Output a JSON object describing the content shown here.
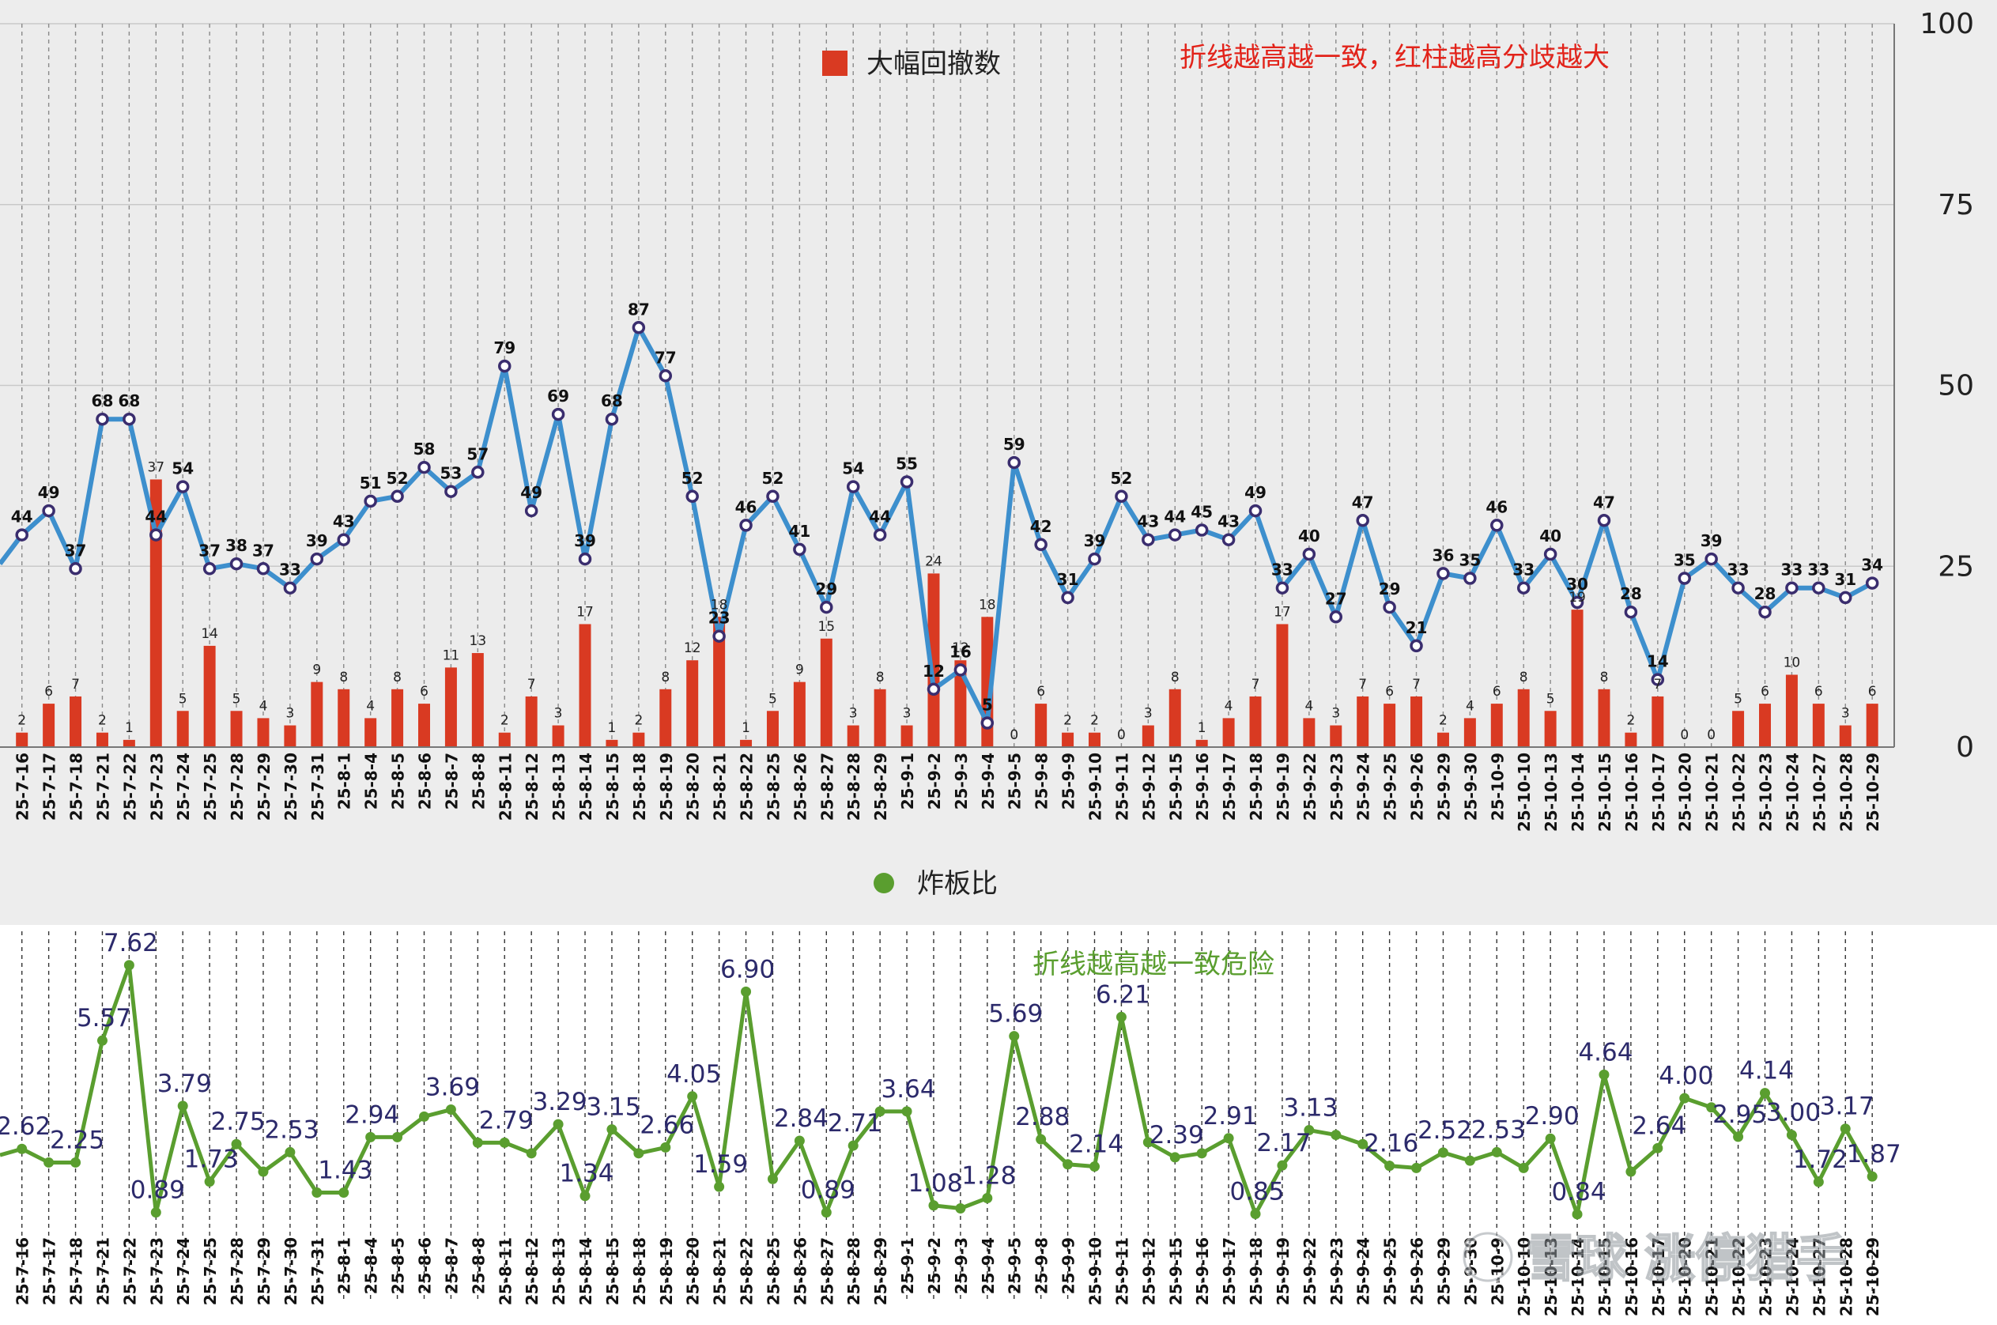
{
  "chart_data": [
    {
      "type": "bar+line",
      "annotation": "折线越高越一致，红柱越高分歧越大",
      "legend": [
        {
          "name": "大幅回撤数",
          "color": "#d93a22",
          "shape": "square"
        }
      ],
      "right_axis_ticks": [
        "100",
        "75",
        "50",
        "25",
        "0"
      ],
      "ylim": [
        0,
        100
      ],
      "grid": true,
      "colors": {
        "bar": "#d93a22",
        "line": "#3d8fcd",
        "marker_fill": "#ffffff",
        "marker_stroke": "#3a2d6e",
        "panel_bg": "#ededed"
      },
      "categories": [
        "25-7-16",
        "25-7-17",
        "25-7-18",
        "25-7-21",
        "25-7-22",
        "25-7-23",
        "25-7-24",
        "25-7-25",
        "25-7-28",
        "25-7-29",
        "25-7-30",
        "25-7-31",
        "25-8-1",
        "25-8-4",
        "25-8-5",
        "25-8-6",
        "25-8-7",
        "25-8-8",
        "25-8-11",
        "25-8-12",
        "25-8-13",
        "25-8-14",
        "25-8-15",
        "25-8-18",
        "25-8-19",
        "25-8-20",
        "25-8-21",
        "25-8-22",
        "25-8-25",
        "25-8-26",
        "25-8-27",
        "25-8-28",
        "25-8-29",
        "25-9-1",
        "25-9-2",
        "25-9-3",
        "25-9-4",
        "25-9-5",
        "25-9-8",
        "25-9-9",
        "25-9-10",
        "25-9-11",
        "25-9-12",
        "25-9-15",
        "25-9-16",
        "25-9-17",
        "25-9-18",
        "25-9-19",
        "25-9-22",
        "25-9-23",
        "25-9-24",
        "25-9-25",
        "25-9-26",
        "25-9-29",
        "25-9-30",
        "25-10-9",
        "25-10-10",
        "25-10-13",
        "25-10-14",
        "25-10-15",
        "25-10-16",
        "25-10-17",
        "25-10-20",
        "25-10-21",
        "25-10-22",
        "25-10-23",
        "25-10-24",
        "25-10-27",
        "25-10-28",
        "25-10-29"
      ],
      "bar_values": [
        2,
        6,
        7,
        2,
        1,
        37,
        5,
        14,
        5,
        4,
        3,
        9,
        8,
        4,
        8,
        6,
        11,
        13,
        2,
        7,
        3,
        17,
        1,
        2,
        8,
        12,
        18,
        1,
        5,
        9,
        15,
        3,
        8,
        3,
        24,
        12,
        18,
        0,
        6,
        2,
        2,
        0,
        3,
        8,
        1,
        4,
        7,
        17,
        4,
        3,
        7,
        6,
        7,
        2,
        4,
        6,
        8,
        5,
        19,
        8,
        2,
        7,
        0,
        0,
        5,
        6,
        10,
        6,
        3,
        6
      ],
      "line_values": [
        44,
        49,
        37,
        68,
        68,
        44,
        54,
        37,
        38,
        37,
        33,
        39,
        43,
        51,
        52,
        58,
        53,
        57,
        79,
        49,
        69,
        39,
        68,
        87,
        77,
        52,
        23,
        46,
        52,
        41,
        29,
        54,
        44,
        55,
        12,
        16,
        5,
        59,
        42,
        31,
        39,
        52,
        43,
        44,
        45,
        43,
        49,
        33,
        40,
        27,
        47,
        29,
        21,
        36,
        35,
        46,
        33,
        40,
        30,
        47,
        28,
        14,
        35,
        39,
        33,
        28,
        33,
        33,
        31,
        34
      ],
      "line_scale_max": 150,
      "left_partial": {
        "line_value": 38,
        "line_label": ""
      }
    },
    {
      "type": "line",
      "annotation": "折线越高越一致危险",
      "legend": [
        {
          "name": "炸板比",
          "color": "#5a9e2f",
          "shape": "circle"
        }
      ],
      "grid": true,
      "colors": {
        "line": "#5a9e2f",
        "label": "#2c2a6b"
      },
      "categories": [
        "25-7-16",
        "25-7-17",
        "25-7-18",
        "25-7-21",
        "25-7-22",
        "25-7-23",
        "25-7-24",
        "25-7-25",
        "25-7-28",
        "25-7-29",
        "25-7-30",
        "25-7-31",
        "25-8-1",
        "25-8-4",
        "25-8-5",
        "25-8-6",
        "25-8-7",
        "25-8-8",
        "25-8-11",
        "25-8-12",
        "25-8-13",
        "25-8-14",
        "25-8-15",
        "25-8-18",
        "25-8-19",
        "25-8-20",
        "25-8-21",
        "25-8-22",
        "25-8-25",
        "25-8-26",
        "25-8-27",
        "25-8-28",
        "25-8-29",
        "25-9-1",
        "25-9-2",
        "25-9-3",
        "25-9-4",
        "25-9-5",
        "25-9-8",
        "25-9-9",
        "25-9-10",
        "25-9-11",
        "25-9-12",
        "25-9-15",
        "25-9-16",
        "25-9-17",
        "25-9-18",
        "25-9-19",
        "25-9-22",
        "25-9-23",
        "25-9-24",
        "25-9-25",
        "25-9-26",
        "25-9-29",
        "25-9-30",
        "25-10-9",
        "25-10-10",
        "25-10-13",
        "25-10-14",
        "25-10-15",
        "25-10-16",
        "25-10-17",
        "25-10-20",
        "25-10-21",
        "25-10-22",
        "25-10-23",
        "25-10-24",
        "25-10-27",
        "25-10-28",
        "25-10-29"
      ],
      "values": [
        2.62,
        2.25,
        2.25,
        5.57,
        7.62,
        0.89,
        3.79,
        1.73,
        2.75,
        2.0,
        2.53,
        1.43,
        1.43,
        2.94,
        2.94,
        3.5,
        3.69,
        2.79,
        2.79,
        2.5,
        3.29,
        1.34,
        3.15,
        2.5,
        2.66,
        4.05,
        1.59,
        6.9,
        1.8,
        2.84,
        0.89,
        2.71,
        3.64,
        3.64,
        1.08,
        1.0,
        1.28,
        5.69,
        2.88,
        2.2,
        2.14,
        6.21,
        2.8,
        2.39,
        2.5,
        2.91,
        0.85,
        2.17,
        3.13,
        3.0,
        2.75,
        2.16,
        2.1,
        2.52,
        2.3,
        2.53,
        2.1,
        2.9,
        0.84,
        4.64,
        2.0,
        2.64,
        4.0,
        3.75,
        2.95,
        4.14,
        3.0,
        1.72,
        3.17,
        1.87
      ],
      "labels": [
        "2.62",
        "",
        "2.25",
        "5.57",
        "7.62",
        "0.89",
        "3.79",
        "1.73",
        "2.75",
        "",
        "2.53",
        "",
        "1.43",
        "2.94",
        "",
        "",
        "3.69",
        "",
        "2.79",
        "",
        "3.29",
        "1.34",
        "3.15",
        "",
        "2.66",
        "4.05",
        "1.59",
        "6.90",
        "",
        "2.84",
        "0.89",
        "2.71",
        "",
        "3.64",
        "1.08",
        "",
        "1.28",
        "5.69",
        "2.88",
        "",
        "2.14",
        "6.21",
        "",
        "2.39",
        "",
        "2.91",
        "0.85",
        "2.17",
        "3.13",
        "",
        "",
        "2.16",
        "",
        "2.52",
        "",
        "2.53",
        "",
        "2.90",
        "0.84",
        "4.64",
        "",
        "2.64",
        "4.00",
        "",
        "2.95",
        "4.14",
        "3.00",
        "1.72",
        "3.17",
        "1.87"
      ],
      "ylim": [
        0,
        8.5
      ],
      "left_partial": {
        "value": 2.45
      }
    }
  ],
  "watermark": "雪球 涨停猎手"
}
